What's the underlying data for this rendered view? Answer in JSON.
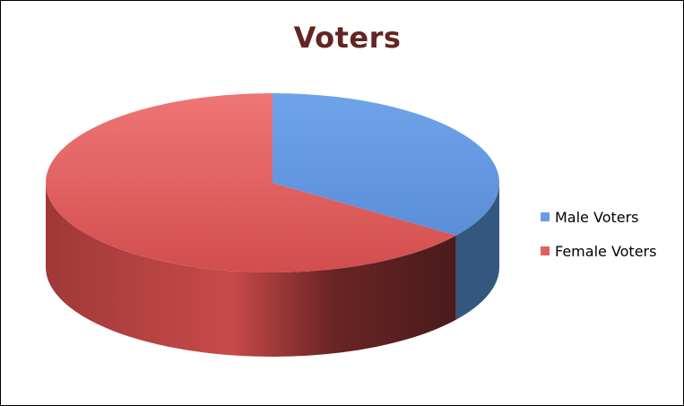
{
  "chart_data": {
    "type": "pie",
    "title": "Voters",
    "style": "3d",
    "legend_position": "right",
    "title_color": "#632523",
    "series": [
      {
        "name": "Voters",
        "slices": [
          {
            "label": "Male Voters",
            "value": 35,
            "color": "#6b9de2",
            "side_color": "#33577f"
          },
          {
            "label": "Female Voters",
            "value": 65,
            "color": "#e06060",
            "side_color": "#b54040"
          }
        ]
      }
    ]
  }
}
